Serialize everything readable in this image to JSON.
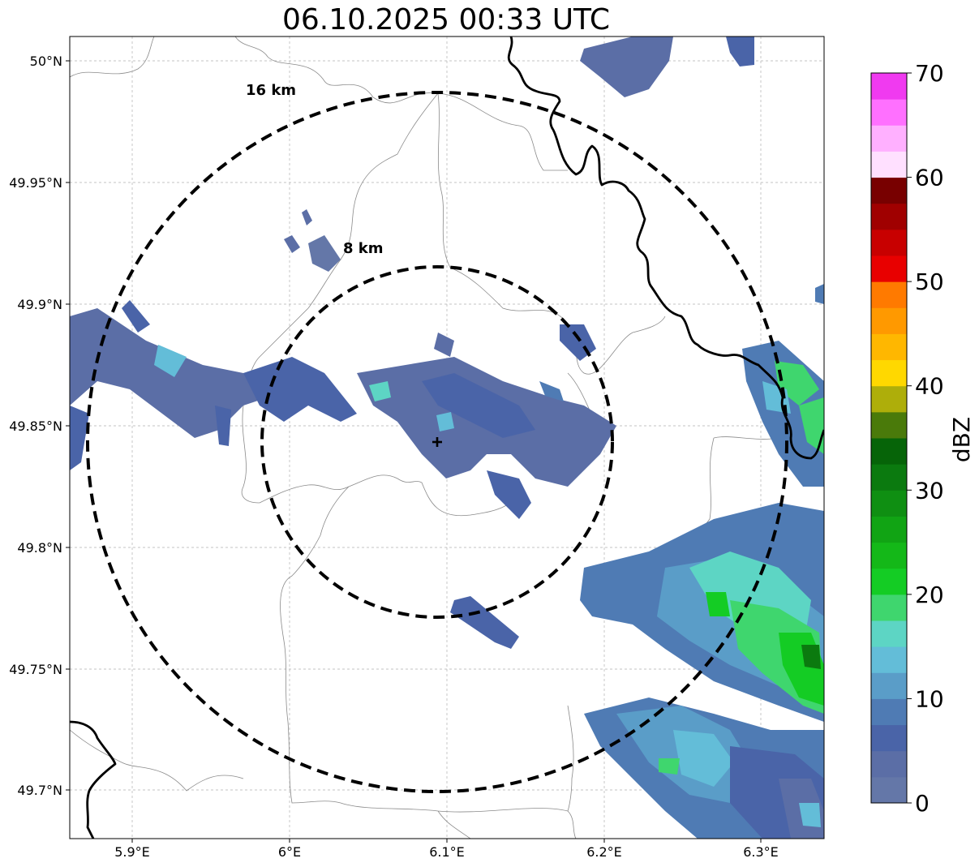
{
  "title": "06.10.2025 00:33 UTC",
  "map": {
    "x_ticks": [
      "5.9°E",
      "6°E",
      "6.1°E",
      "6.2°E",
      "6.3°E"
    ],
    "y_ticks": [
      "50°N",
      "49.95°N",
      "49.9°N",
      "49.85°N",
      "49.8°N",
      "49.75°N",
      "49.7°N"
    ],
    "rings": [
      {
        "label": "16 km",
        "radius_km": 16
      },
      {
        "label": "8 km",
        "radius_km": 8
      }
    ],
    "radar_site_marker": "plus-icon",
    "grid": true,
    "ring_style": "dashed black",
    "border_color": "#000000"
  },
  "colorbar": {
    "label": "dBZ",
    "ticks": [
      "0",
      "10",
      "20",
      "30",
      "40",
      "50",
      "60",
      "70"
    ],
    "min": 0,
    "max": 70,
    "step": 2.5,
    "colors": [
      "#6477a8",
      "#5b6ea6",
      "#4a64a8",
      "#4f7bb4",
      "#5a9dc8",
      "#63bdd8",
      "#5dd5c4",
      "#3fd66e",
      "#14cc24",
      "#14b818",
      "#11a414",
      "#0f8f12",
      "#0b7a0f",
      "#066408",
      "#4a7a0a",
      "#aeae0a",
      "#ffd800",
      "#ffb700",
      "#ff9900",
      "#ff7a00",
      "#e80000",
      "#c80000",
      "#a00000",
      "#780000",
      "#ffe0ff",
      "#ffb0ff",
      "#ff70ff",
      "#f03af0"
    ]
  }
}
